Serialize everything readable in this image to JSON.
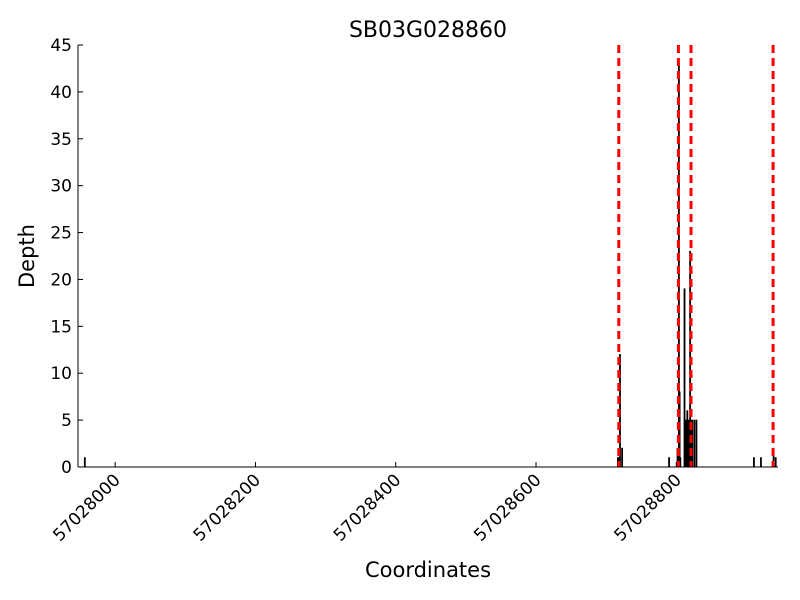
{
  "chart_data": {
    "type": "bar",
    "title": "SB03G028860",
    "x_label": "Coordinates",
    "y_label": "Depth",
    "x": [
      57027956,
      57028716,
      57028718,
      57028719,
      57028722,
      57028789,
      57028801,
      57028803,
      57028804,
      57028805,
      57028811,
      57028812,
      57028814,
      57028815,
      57028817,
      57028819,
      57028820,
      57028822,
      57028825,
      57028828,
      57028910,
      57028920,
      57028938,
      57028941
    ],
    "values": [
      1,
      1,
      1,
      12,
      2,
      1,
      2,
      43,
      8,
      1,
      19,
      5,
      5,
      6,
      5,
      23,
      5,
      5,
      5,
      5,
      1,
      1,
      2,
      1
    ],
    "color": "#000000",
    "vlines": [
      57028718,
      57028803,
      57028821,
      57028938
    ],
    "vline_color": "#ff0000",
    "xlim": [
      57027947,
      57028945
    ],
    "xticks": [
      57028000,
      57028200,
      57028400,
      57028600,
      57028800
    ],
    "ylim": [
      0,
      45
    ],
    "yticks": [
      0,
      5,
      10,
      15,
      20,
      25,
      30,
      35,
      40,
      45
    ]
  }
}
